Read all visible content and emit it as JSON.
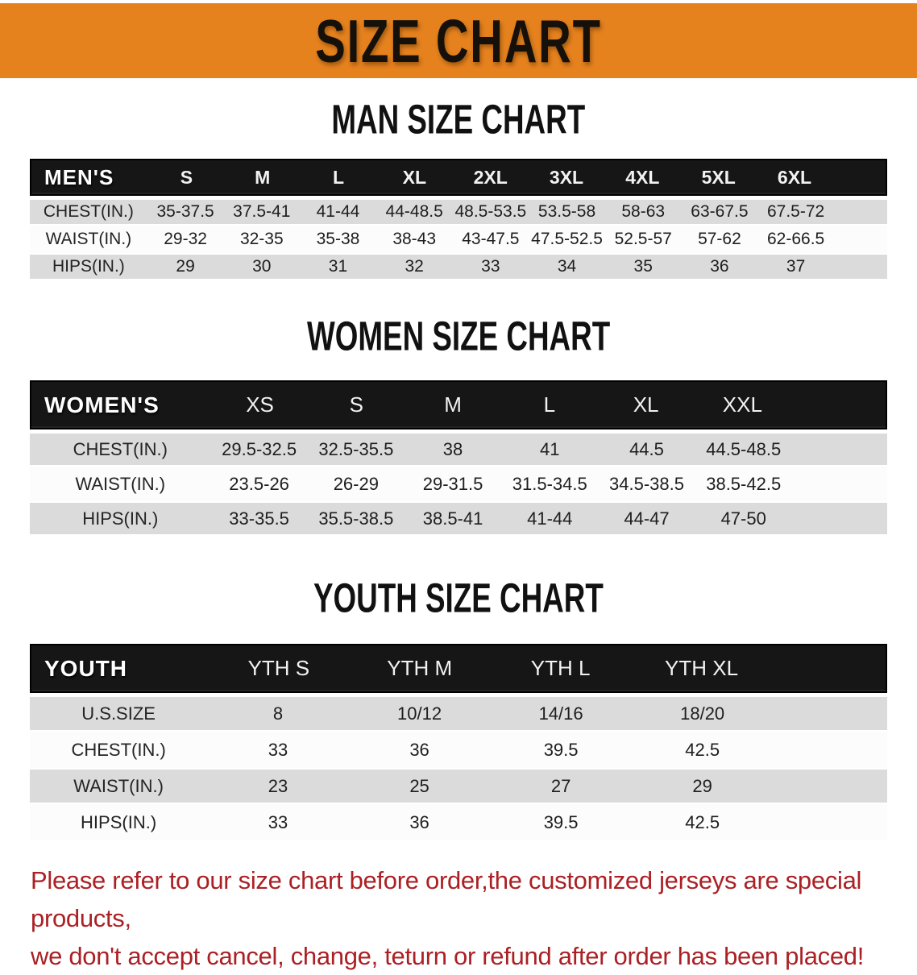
{
  "banner": {
    "title": "SIZE CHART"
  },
  "colors": {
    "banner_bg": "#e6821e",
    "header_bg": "#161616",
    "row_gray": "#dbdbdb",
    "row_white": "#fcfcfc",
    "disclaimer_red": "#ab2024"
  },
  "chart_data": [
    {
      "type": "table",
      "title": "MAN SIZE CHART",
      "header_label": "MEN'S",
      "columns": [
        "S",
        "M",
        "L",
        "XL",
        "2XL",
        "3XL",
        "4XL",
        "5XL",
        "6XL"
      ],
      "rows": [
        {
          "label": "CHEST(IN.)",
          "values": [
            "35-37.5",
            "37.5-41",
            "41-44",
            "44-48.5",
            "48.5-53.5",
            "53.5-58",
            "58-63",
            "63-67.5",
            "67.5-72"
          ]
        },
        {
          "label": "WAIST(IN.)",
          "values": [
            "29-32",
            "32-35",
            "35-38",
            "38-43",
            "43-47.5",
            "47.5-52.5",
            "52.5-57",
            "57-62",
            "62-66.5"
          ]
        },
        {
          "label": "HIPS(IN.)",
          "values": [
            "29",
            "30",
            "31",
            "32",
            "33",
            "34",
            "35",
            "36",
            "37"
          ]
        }
      ]
    },
    {
      "type": "table",
      "title": "WOMEN SIZE CHART",
      "header_label": "WOMEN'S",
      "columns": [
        "XS",
        "S",
        "M",
        "L",
        "XL",
        "XXL"
      ],
      "rows": [
        {
          "label": "CHEST(IN.)",
          "values": [
            "29.5-32.5",
            "32.5-35.5",
            "38",
            "41",
            "44.5",
            "44.5-48.5"
          ]
        },
        {
          "label": "WAIST(IN.)",
          "values": [
            "23.5-26",
            "26-29",
            "29-31.5",
            "31.5-34.5",
            "34.5-38.5",
            "38.5-42.5"
          ]
        },
        {
          "label": "HIPS(IN.)",
          "values": [
            "33-35.5",
            "35.5-38.5",
            "38.5-41",
            "41-44",
            "44-47",
            "47-50"
          ]
        }
      ]
    },
    {
      "type": "table",
      "title": "YOUTH SIZE CHART",
      "header_label": "YOUTH",
      "columns": [
        "YTH S",
        "YTH M",
        "YTH L",
        "YTH XL"
      ],
      "rows": [
        {
          "label": "U.S.SIZE",
          "values": [
            "8",
            "10/12",
            "14/16",
            "18/20"
          ]
        },
        {
          "label": "CHEST(IN.)",
          "values": [
            "33",
            "36",
            "39.5",
            "42.5"
          ]
        },
        {
          "label": "WAIST(IN.)",
          "values": [
            "23",
            "25",
            "27",
            "29"
          ]
        },
        {
          "label": "HIPS(IN.)",
          "values": [
            "33",
            "36",
            "39.5",
            "42.5"
          ]
        }
      ]
    }
  ],
  "disclaimer": {
    "line1": "Please refer to our size chart before order,the customized jerseys are special products,",
    "line2": "we don't accept cancel, change, teturn or refund after order has been placed!"
  }
}
